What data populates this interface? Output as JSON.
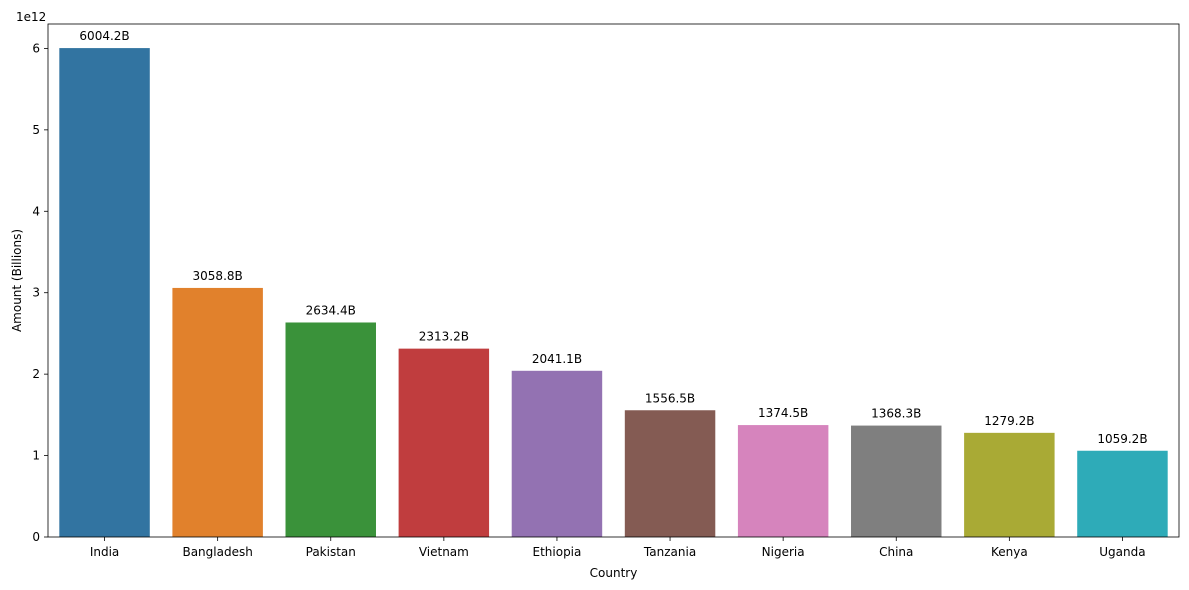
{
  "chart_data": {
    "type": "bar",
    "title": "",
    "xlabel": "Country",
    "ylabel": "Amount (Billions)",
    "y_offset_text": "1e12",
    "y_scale_factor": 1000000000000.0,
    "ylim": [
      0,
      6.3
    ],
    "yticks": [
      0,
      1,
      2,
      3,
      4,
      5,
      6
    ],
    "ytick_labels": [
      "0",
      "1",
      "2",
      "3",
      "4",
      "5",
      "6"
    ],
    "grid": false,
    "legend": "none",
    "categories": [
      "India",
      "Bangladesh",
      "Pakistan",
      "Vietnam",
      "Ethiopia",
      "Tanzania",
      "Nigeria",
      "China",
      "Kenya",
      "Uganda"
    ],
    "values": [
      6.0042,
      3.0588,
      2.6344,
      2.3132,
      2.0411,
      1.5565,
      1.3745,
      1.3683,
      1.2792,
      1.0592
    ],
    "data_labels": [
      "6004.2B",
      "3058.8B",
      "2634.4B",
      "2313.2B",
      "2041.1B",
      "1556.5B",
      "1374.5B",
      "1368.3B",
      "1279.2B",
      "1059.2B"
    ],
    "colors": [
      "#3274a1",
      "#e1812c",
      "#3a923a",
      "#c03d3e",
      "#9372b2",
      "#845b53",
      "#d684bd",
      "#7f7f7f",
      "#a9aa35",
      "#2eabb8"
    ]
  }
}
